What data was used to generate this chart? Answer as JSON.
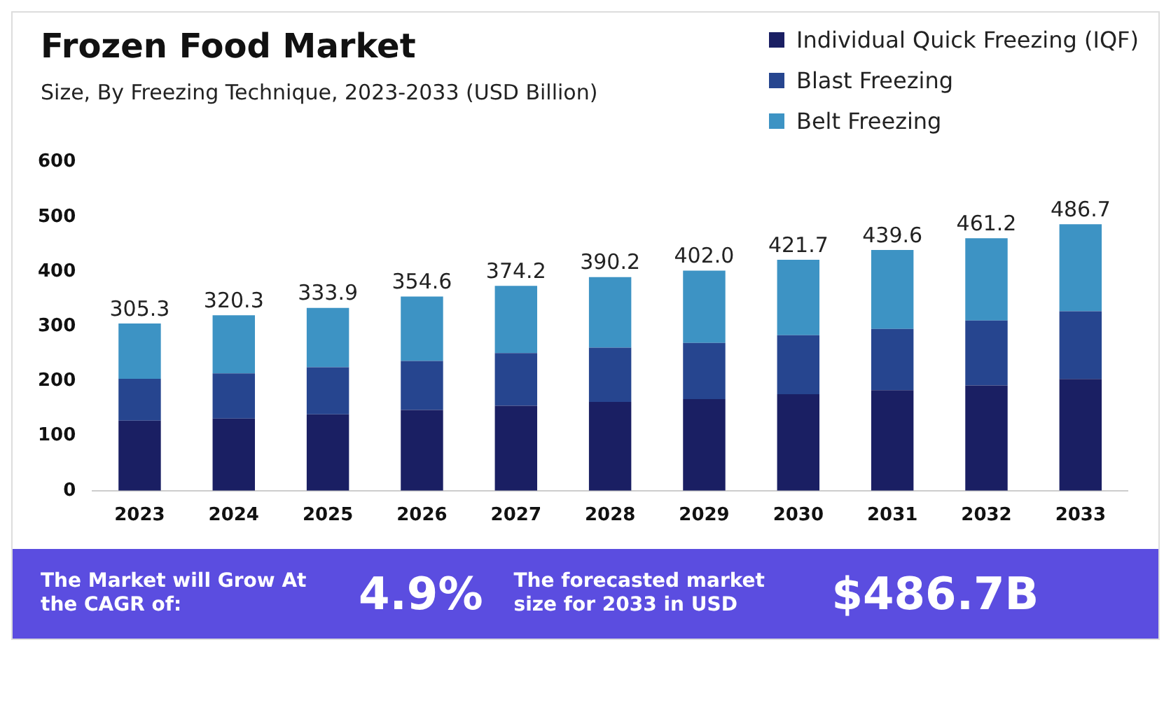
{
  "chart_data": {
    "type": "bar",
    "title": "Frozen Food Market",
    "subtitle": "Size, By Freezing Technique, 2023-2033 (USD Billion)",
    "categories": [
      "2023",
      "2024",
      "2025",
      "2026",
      "2027",
      "2028",
      "2029",
      "2030",
      "2031",
      "2032",
      "2033"
    ],
    "series": [
      {
        "name": "Individual Quick Freezing (IQF)",
        "color": "#1a1f63",
        "values": [
          127.9,
          131.8,
          139.6,
          147.4,
          155.0,
          162.0,
          167.4,
          176.2,
          183.5,
          192.2,
          203.9
        ]
      },
      {
        "name": "Blast Freezing",
        "color": "#26458f",
        "values": [
          76.3,
          82.5,
          85.9,
          89.7,
          96.2,
          99.1,
          102.4,
          107.8,
          112.0,
          118.5,
          123.8
        ]
      },
      {
        "name": "Belt Freezing",
        "color": "#3d93c4",
        "values": [
          101.1,
          106.0,
          108.4,
          117.5,
          123.0,
          129.1,
          132.2,
          137.7,
          144.1,
          150.5,
          159.0
        ]
      }
    ],
    "stacked": true,
    "totals": [
      "305.3",
      "320.3",
      "333.9",
      "354.6",
      "374.2",
      "390.2",
      "402.0",
      "421.7",
      "439.6",
      "461.2",
      "486.7"
    ],
    "ylim": [
      0,
      600
    ],
    "yticks": [
      0,
      100,
      200,
      300,
      400,
      500,
      600
    ],
    "grid": false,
    "legend": "top right",
    "annotations": [
      "The Market will Grow At the CAGR of:",
      "4.9%",
      "The forecasted market size for 2033 in USD",
      "$486.7B"
    ]
  }
}
